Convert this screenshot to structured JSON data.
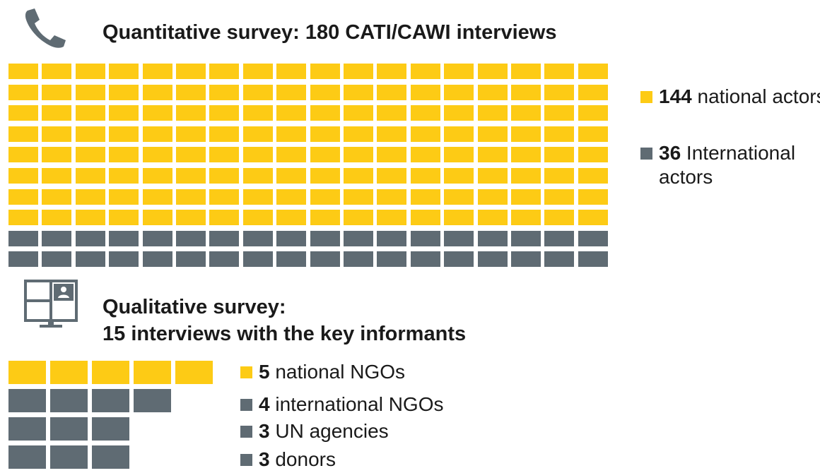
{
  "colors": {
    "national": "#FDCB15",
    "international": "#5F6B73",
    "icon": "#5F6B73"
  },
  "quantitative": {
    "icon": "phone-icon",
    "title": "Quantitative survey: 180 CATI/CAWI interviews",
    "grid_columns": 18,
    "total": 180,
    "legend": [
      {
        "count": "144",
        "label": " national actors",
        "color_key": "national"
      },
      {
        "count": "36",
        "label": " International actors",
        "color_key": "international"
      }
    ]
  },
  "qualitative": {
    "icon": "video-call-monitor-icon",
    "title_line1": "Qualitative survey:",
    "title_line2": "15 interviews with the key informants",
    "rows": [
      5,
      4,
      3,
      3
    ],
    "legend": [
      {
        "count": "5",
        "label": " national NGOs",
        "color_key": "national"
      },
      {
        "count": "4",
        "label": " international NGOs",
        "color_key": "international"
      },
      {
        "count": "3",
        "label": " UN agencies",
        "color_key": "international"
      },
      {
        "count": "3",
        "label": " donors",
        "color_key": "international"
      }
    ]
  }
}
